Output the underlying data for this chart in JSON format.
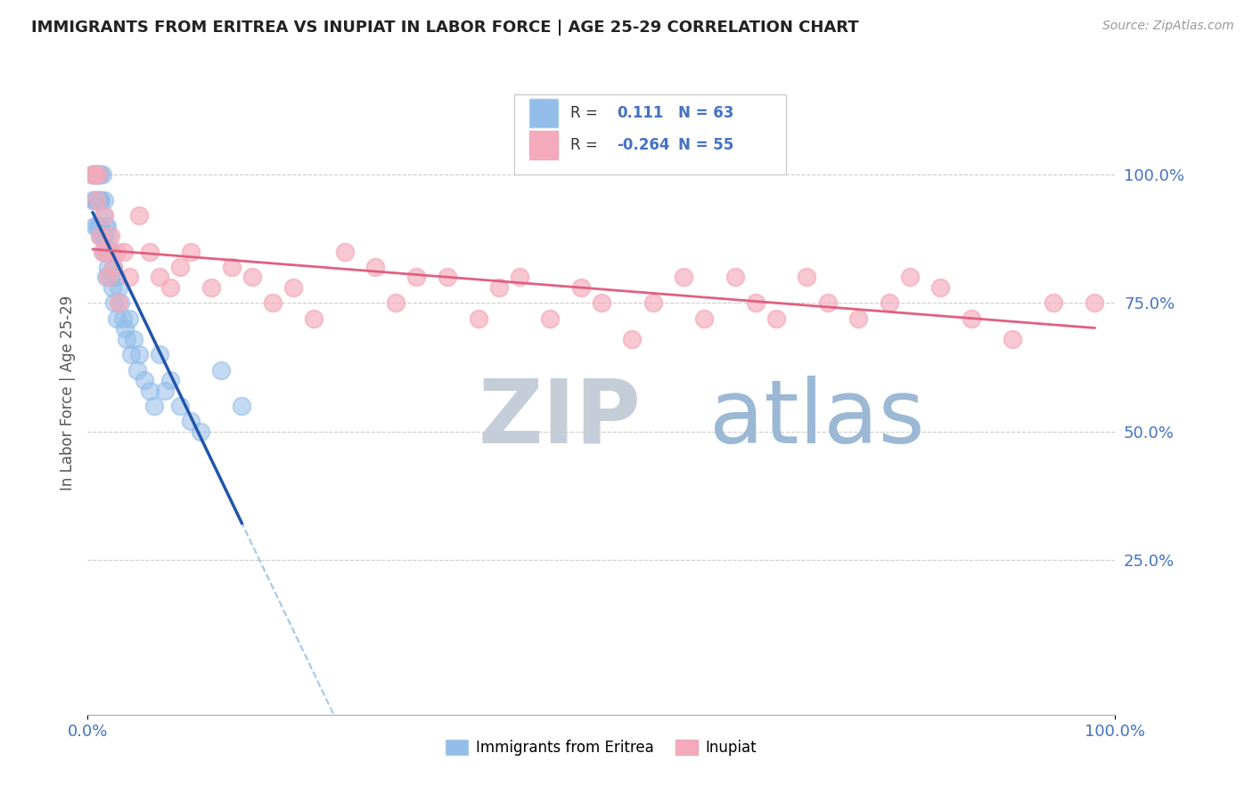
{
  "title": "IMMIGRANTS FROM ERITREA VS INUPIAT IN LABOR FORCE | AGE 25-29 CORRELATION CHART",
  "source_text": "Source: ZipAtlas.com",
  "ylabel": "In Labor Force | Age 25-29",
  "r_eritrea": 0.111,
  "n_eritrea": 63,
  "r_inupiat": -0.264,
  "n_inupiat": 55,
  "legend_labels": [
    "Immigrants from Eritrea",
    "Inupiat"
  ],
  "color_eritrea": "#92BDE8",
  "color_inupiat": "#F4AABB",
  "trendline_color_eritrea": "#2255AA",
  "trendline_color_inupiat": "#E06080",
  "dashed_line_color": "#92BDE8",
  "background_color": "#FFFFFF",
  "watermark_zip": "ZIP",
  "watermark_atlas": "atlas",
  "watermark_color_zip": "#C5CDD8",
  "watermark_color_atlas": "#9BB8D4",
  "xlim": [
    0.0,
    1.0
  ],
  "ylim": [
    -0.05,
    1.2
  ],
  "ytick_positions": [
    0.0,
    0.25,
    0.5,
    0.75,
    1.0
  ],
  "ytick_labels": [
    "",
    "25.0%",
    "50.0%",
    "75.0%",
    "100.0%"
  ],
  "xtick_positions": [
    0.0,
    1.0
  ],
  "xtick_labels": [
    "0.0%",
    "100.0%"
  ],
  "eritrea_x": [
    0.005,
    0.005,
    0.005,
    0.007,
    0.007,
    0.007,
    0.007,
    0.008,
    0.008,
    0.009,
    0.009,
    0.01,
    0.01,
    0.01,
    0.01,
    0.011,
    0.011,
    0.012,
    0.012,
    0.012,
    0.013,
    0.013,
    0.014,
    0.014,
    0.015,
    0.015,
    0.016,
    0.016,
    0.017,
    0.018,
    0.018,
    0.019,
    0.02,
    0.02,
    0.021,
    0.022,
    0.023,
    0.024,
    0.025,
    0.026,
    0.027,
    0.028,
    0.03,
    0.032,
    0.034,
    0.036,
    0.038,
    0.04,
    0.042,
    0.045,
    0.048,
    0.05,
    0.055,
    0.06,
    0.065,
    0.07,
    0.075,
    0.08,
    0.09,
    0.1,
    0.11,
    0.13,
    0.15
  ],
  "eritrea_y": [
    1.0,
    1.0,
    0.95,
    1.0,
    1.0,
    0.95,
    0.9,
    1.0,
    0.95,
    1.0,
    0.9,
    1.0,
    1.0,
    0.95,
    0.9,
    1.0,
    0.95,
    1.0,
    0.95,
    0.88,
    0.95,
    0.9,
    1.0,
    0.88,
    0.92,
    0.85,
    0.95,
    0.88,
    0.9,
    0.85,
    0.8,
    0.9,
    0.88,
    0.82,
    0.85,
    0.8,
    0.85,
    0.78,
    0.82,
    0.75,
    0.8,
    0.72,
    0.78,
    0.75,
    0.72,
    0.7,
    0.68,
    0.72,
    0.65,
    0.68,
    0.62,
    0.65,
    0.6,
    0.58,
    0.55,
    0.65,
    0.58,
    0.6,
    0.55,
    0.52,
    0.5,
    0.62,
    0.55
  ],
  "inupiat_x": [
    0.005,
    0.007,
    0.008,
    0.01,
    0.012,
    0.014,
    0.016,
    0.018,
    0.02,
    0.022,
    0.025,
    0.028,
    0.03,
    0.035,
    0.04,
    0.05,
    0.06,
    0.07,
    0.08,
    0.09,
    0.1,
    0.12,
    0.14,
    0.16,
    0.18,
    0.2,
    0.22,
    0.25,
    0.28,
    0.3,
    0.32,
    0.35,
    0.38,
    0.4,
    0.42,
    0.45,
    0.48,
    0.5,
    0.53,
    0.55,
    0.58,
    0.6,
    0.63,
    0.65,
    0.67,
    0.7,
    0.72,
    0.75,
    0.78,
    0.8,
    0.83,
    0.86,
    0.9,
    0.94,
    0.98
  ],
  "inupiat_y": [
    1.0,
    1.0,
    0.95,
    1.0,
    0.88,
    0.85,
    0.92,
    0.85,
    0.8,
    0.88,
    0.82,
    0.85,
    0.75,
    0.85,
    0.8,
    0.92,
    0.85,
    0.8,
    0.78,
    0.82,
    0.85,
    0.78,
    0.82,
    0.8,
    0.75,
    0.78,
    0.72,
    0.85,
    0.82,
    0.75,
    0.8,
    0.8,
    0.72,
    0.78,
    0.8,
    0.72,
    0.78,
    0.75,
    0.68,
    0.75,
    0.8,
    0.72,
    0.8,
    0.75,
    0.72,
    0.8,
    0.75,
    0.72,
    0.75,
    0.8,
    0.78,
    0.72,
    0.68,
    0.75,
    0.75
  ]
}
